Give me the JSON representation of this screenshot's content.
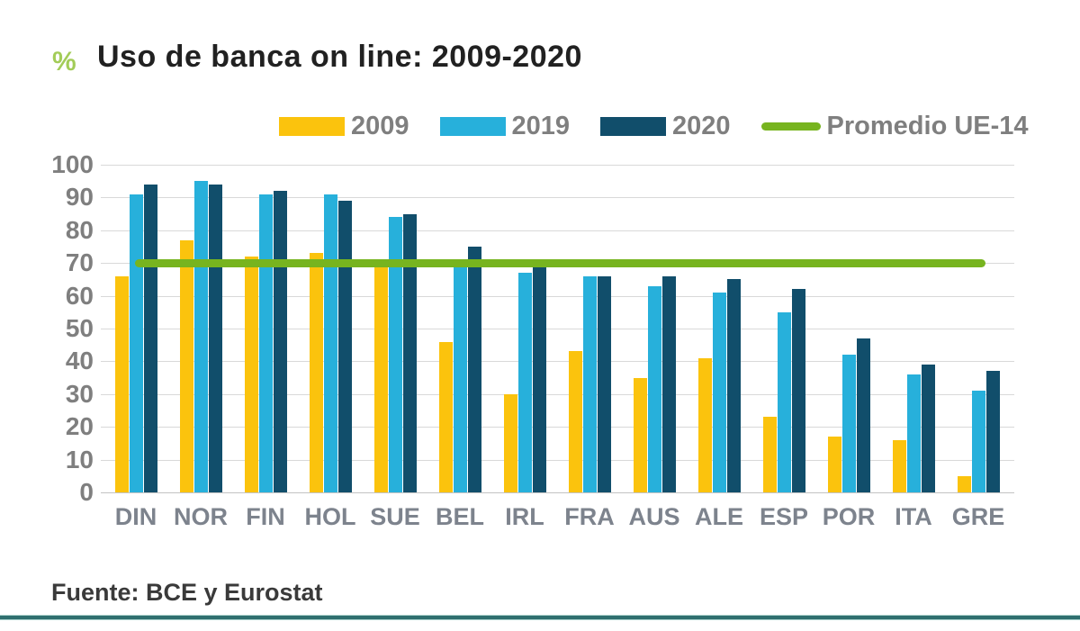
{
  "title": {
    "percent_symbol": "%",
    "text": "Uso de banca on line: 2009-2020",
    "percent_color": "#a3cc58",
    "text_color": "#212121"
  },
  "legend": {
    "items": [
      {
        "label": "2009",
        "swatch": "rect",
        "color": "#fbc30d"
      },
      {
        "label": "2019",
        "swatch": "rect",
        "color": "#27b0db"
      },
      {
        "label": "2020",
        "swatch": "rect",
        "color": "#114e6b"
      },
      {
        "label": "Promedio UE-14",
        "swatch": "line",
        "color": "#77b41f"
      }
    ]
  },
  "footer": {
    "source": "Fuente: BCE y Eurostat"
  },
  "chart_data": {
    "type": "bar",
    "title": "Uso de banca on line: 2009-2020",
    "ylabel": "%",
    "xlabel": "",
    "categories": [
      "DIN",
      "NOR",
      "FIN",
      "HOL",
      "SUE",
      "BEL",
      "IRL",
      "FRA",
      "AUS",
      "ALE",
      "ESP",
      "POR",
      "ITA",
      "GRE"
    ],
    "series": [
      {
        "name": "2009",
        "color": "#fbc30d",
        "values": [
          66,
          77,
          72,
          73,
          70,
          46,
          30,
          43,
          35,
          41,
          23,
          17,
          16,
          5
        ]
      },
      {
        "name": "2019",
        "color": "#27b0db",
        "values": [
          91,
          95,
          91,
          91,
          84,
          69,
          67,
          66,
          63,
          61,
          55,
          42,
          36,
          31
        ]
      },
      {
        "name": "2020",
        "color": "#114e6b",
        "values": [
          94,
          94,
          92,
          89,
          85,
          75,
          69,
          66,
          66,
          65,
          62,
          47,
          39,
          37
        ]
      }
    ],
    "average_line": {
      "name": "Promedio UE-14",
      "value": 70,
      "color": "#77b41f"
    },
    "ylim": [
      0,
      100
    ],
    "yticks": [
      0,
      10,
      20,
      30,
      40,
      50,
      60,
      70,
      80,
      90,
      100
    ],
    "grid": true,
    "legend_position": "top"
  }
}
